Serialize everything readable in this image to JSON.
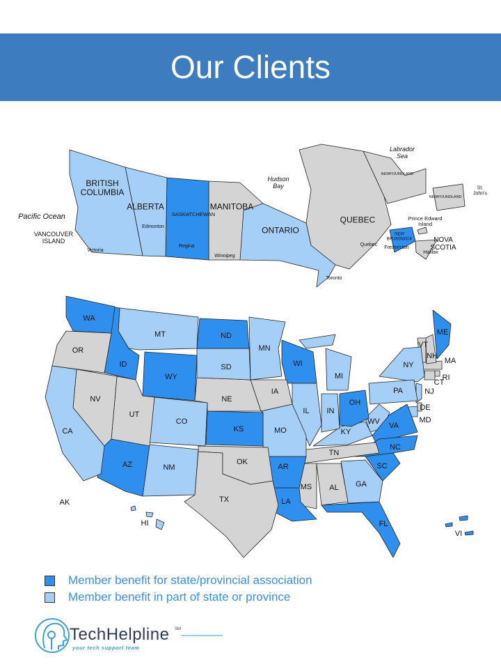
{
  "header": {
    "title": "Our Clients"
  },
  "legend": [
    {
      "label": "Member benefit for state/provincial association",
      "color": "#2e8fee"
    },
    {
      "label": "Member benefit in part of state or province",
      "color": "#a6cff8"
    }
  ],
  "no_benefit_color": "#d4d4d4",
  "canada": {
    "regions": [
      {
        "label": "BRITISH COLUMBIA",
        "benefit": 1
      },
      {
        "label": "ALBERTA",
        "benefit": 1
      },
      {
        "label": "SASKATCHEWAN",
        "benefit": 0
      },
      {
        "label": "MANITOBA",
        "benefit": null
      },
      {
        "label": "ONTARIO",
        "benefit": 1
      },
      {
        "label": "QUEBEC",
        "benefit": null
      },
      {
        "label": "NEWFOUNDLAND",
        "benefit": null
      },
      {
        "label": "NEWFOUNDLAND",
        "benefit": null
      },
      {
        "label": "NEW BRUNSWICK",
        "benefit": 0
      },
      {
        "label": "NOVA SCOTIA",
        "benefit": null
      },
      {
        "label": "Prince Edward Island",
        "benefit": null
      }
    ],
    "places": [
      "Pacific Ocean",
      "VANCOUVER ISLAND",
      "Hudson Bay",
      "Labrador Sea",
      "Edmonton",
      "Regina",
      "Victoria",
      "Winnipeg",
      "Toronto",
      "Quebec",
      "Fredericton",
      "Halifax",
      "St. John's"
    ]
  },
  "usa": {
    "states": [
      {
        "label": "WA",
        "benefit": 0
      },
      {
        "label": "OR",
        "benefit": null
      },
      {
        "label": "CA",
        "benefit": 1
      },
      {
        "label": "NV",
        "benefit": null
      },
      {
        "label": "ID",
        "benefit": 0
      },
      {
        "label": "MT",
        "benefit": 1
      },
      {
        "label": "WY",
        "benefit": 0
      },
      {
        "label": "UT",
        "benefit": null
      },
      {
        "label": "CO",
        "benefit": 1
      },
      {
        "label": "AZ",
        "benefit": 0
      },
      {
        "label": "NM",
        "benefit": 1
      },
      {
        "label": "ND",
        "benefit": 0
      },
      {
        "label": "SD",
        "benefit": 1
      },
      {
        "label": "NE",
        "benefit": null
      },
      {
        "label": "KS",
        "benefit": 0
      },
      {
        "label": "OK",
        "benefit": null
      },
      {
        "label": "TX",
        "benefit": null
      },
      {
        "label": "MN",
        "benefit": 1
      },
      {
        "label": "IA",
        "benefit": null
      },
      {
        "label": "MO",
        "benefit": 1
      },
      {
        "label": "AR",
        "benefit": 0
      },
      {
        "label": "LA",
        "benefit": 0
      },
      {
        "label": "WI",
        "benefit": 0
      },
      {
        "label": "IL",
        "benefit": 1
      },
      {
        "label": "MI",
        "benefit": 1
      },
      {
        "label": "IN",
        "benefit": 1
      },
      {
        "label": "OH",
        "benefit": 0
      },
      {
        "label": "KY",
        "benefit": 1
      },
      {
        "label": "TN",
        "benefit": null
      },
      {
        "label": "MS",
        "benefit": null
      },
      {
        "label": "AL",
        "benefit": null
      },
      {
        "label": "GA",
        "benefit": 1
      },
      {
        "label": "FL",
        "benefit": 0
      },
      {
        "label": "SC",
        "benefit": 0
      },
      {
        "label": "NC",
        "benefit": 0
      },
      {
        "label": "VA",
        "benefit": 0
      },
      {
        "label": "WV",
        "benefit": 1
      },
      {
        "label": "PA",
        "benefit": 1
      },
      {
        "label": "NY",
        "benefit": 1
      },
      {
        "label": "VT",
        "benefit": null
      },
      {
        "label": "NH",
        "benefit": null
      },
      {
        "label": "ME",
        "benefit": 0
      },
      {
        "label": "MA",
        "benefit": null
      },
      {
        "label": "RI",
        "benefit": null
      },
      {
        "label": "CT",
        "benefit": null
      },
      {
        "label": "NJ",
        "benefit": 1
      },
      {
        "label": "DE",
        "benefit": null
      },
      {
        "label": "MD",
        "benefit": 1
      },
      {
        "label": "AK",
        "benefit": null
      },
      {
        "label": "HI",
        "benefit": 1
      },
      {
        "label": "VI",
        "benefit": 0
      }
    ]
  },
  "logo": {
    "name": "TechHelpline",
    "mark": "SM",
    "tagline": "your tech support team"
  }
}
